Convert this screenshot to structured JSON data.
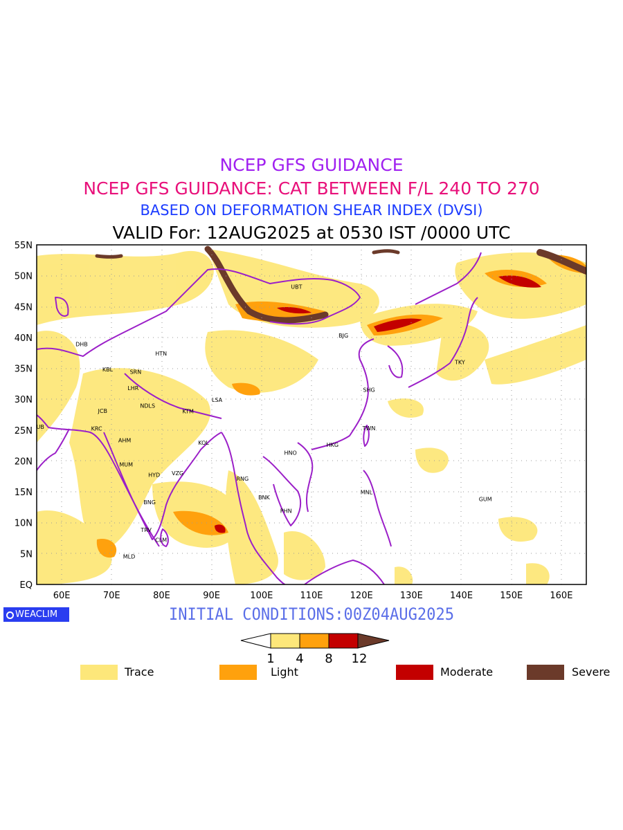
{
  "titles": {
    "line1": "NCEP GFS GUIDANCE",
    "line2": "NCEP GFS GUIDANCE: CAT BETWEEN F/L 240 TO 270",
    "line3": "BASED ON DEFORMATION SHEAR INDEX (DVSI)",
    "line4": "VALID For: 12AUG2025 at 0530 IST /0000 UTC"
  },
  "map": {
    "lon_range": [
      55,
      165
    ],
    "lat_range": [
      0,
      55
    ],
    "lat_labels": [
      "55N",
      "50N",
      "45N",
      "40N",
      "35N",
      "30N",
      "25N",
      "20N",
      "15N",
      "10N",
      "5N",
      "EQ"
    ],
    "lon_labels": [
      "60E",
      "70E",
      "80E",
      "90E",
      "100E",
      "110E",
      "120E",
      "130E",
      "140E",
      "150E",
      "160E"
    ],
    "border_color": "#9b1fc8",
    "grid": true,
    "stations": [
      {
        "code": "UBT",
        "lon": 107,
        "lat": 47.9
      },
      {
        "code": "BJG",
        "lon": 116.4,
        "lat": 40
      },
      {
        "code": "TKY",
        "lon": 139.7,
        "lat": 35.7
      },
      {
        "code": "DHB",
        "lon": 64,
        "lat": 38.6
      },
      {
        "code": "HTN",
        "lon": 79.9,
        "lat": 37.1
      },
      {
        "code": "KBL",
        "lon": 69.2,
        "lat": 34.5
      },
      {
        "code": "SRN",
        "lon": 74.8,
        "lat": 34.1
      },
      {
        "code": "LHR",
        "lon": 74.3,
        "lat": 31.5
      },
      {
        "code": "LSA",
        "lon": 91.1,
        "lat": 29.6
      },
      {
        "code": "SHG",
        "lon": 121.5,
        "lat": 31.2
      },
      {
        "code": "JCB",
        "lon": 68.2,
        "lat": 27.8
      },
      {
        "code": "NDLS",
        "lon": 77.2,
        "lat": 28.6
      },
      {
        "code": "KTM",
        "lon": 85.3,
        "lat": 27.7
      },
      {
        "code": "DUB",
        "lon": 55.3,
        "lat": 25.2
      },
      {
        "code": "KRC",
        "lon": 67,
        "lat": 24.9
      },
      {
        "code": "AHM",
        "lon": 72.6,
        "lat": 23
      },
      {
        "code": "TWN",
        "lon": 121.5,
        "lat": 25
      },
      {
        "code": "KOL",
        "lon": 88.4,
        "lat": 22.6
      },
      {
        "code": "HKG",
        "lon": 114.2,
        "lat": 22.3
      },
      {
        "code": "HNO",
        "lon": 105.8,
        "lat": 21
      },
      {
        "code": "MUM",
        "lon": 72.9,
        "lat": 19.1
      },
      {
        "code": "HYD",
        "lon": 78.5,
        "lat": 17.4
      },
      {
        "code": "VZG",
        "lon": 83.2,
        "lat": 17.7
      },
      {
        "code": "RNG",
        "lon": 96.2,
        "lat": 16.8
      },
      {
        "code": "BNK",
        "lon": 100.5,
        "lat": 13.8
      },
      {
        "code": "MNL",
        "lon": 121,
        "lat": 14.6
      },
      {
        "code": "GUM",
        "lon": 144.8,
        "lat": 13.5
      },
      {
        "code": "BNG",
        "lon": 77.6,
        "lat": 13
      },
      {
        "code": "PHN",
        "lon": 104.9,
        "lat": 11.6
      },
      {
        "code": "TRV",
        "lon": 76.9,
        "lat": 8.5
      },
      {
        "code": "CLM",
        "lon": 79.9,
        "lat": 6.9
      },
      {
        "code": "MLD",
        "lon": 73.5,
        "lat": 4.2
      }
    ]
  },
  "colorbar": {
    "ticks": [
      "1",
      "4",
      "8",
      "12"
    ],
    "colors": {
      "trace": "#fde77a",
      "light": "#ffa10d",
      "moderate": "#c30000",
      "severe": "#6b3a2a"
    }
  },
  "legend": [
    {
      "label": "Trace",
      "color": "#fde77a"
    },
    {
      "label": "Light",
      "color": "#ffa10d"
    },
    {
      "label": "Moderate",
      "color": "#c30000"
    },
    {
      "label": "Severe",
      "color": "#6b3a2a"
    }
  ],
  "initial_conditions": "INITIAL CONDITIONS:00Z04AUG2025",
  "logo_text": "WEACLIM"
}
